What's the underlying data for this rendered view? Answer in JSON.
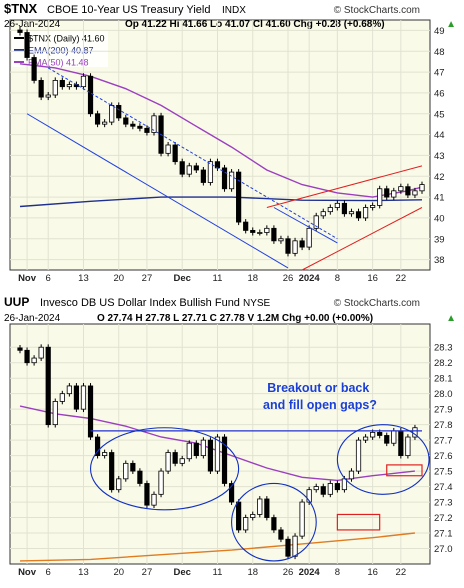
{
  "charts": [
    {
      "ticker": "$TNX",
      "name": "CBOE 10-Year US Treasury Yield",
      "exchange": "INDX",
      "date": "26-Jan-2024",
      "watermark": "© StockCharts.com",
      "quote": "Op 41.22  Hi 41.66  Lo 41.07  Cl 41.60  Chg +0.28 (+0.68%)",
      "chg_arrow": "▲",
      "legend": [
        {
          "label": "$TNX (Daily) 41.60",
          "color": "#000000"
        },
        {
          "label": "EMA(200) 40.87",
          "color": "#1f2f8f"
        },
        {
          "label": "EMA(50) 41.48",
          "color": "#9b3fbf"
        }
      ]
    },
    {
      "ticker": "UUP",
      "name": "Invesco DB US Dollar Index Bullish Fund",
      "exchange": "NYSE",
      "date": "26-Jan-2024",
      "watermark": "© StockCharts.com",
      "quote": "O 27.74  H 27.78  L 27.71  C 27.78  V 1.2M  Chg +0.00 (+0.00%)",
      "chg_arrow": "▲",
      "annotation": "Breakout or back\nand fill open gaps?"
    }
  ],
  "chart_data": [
    {
      "type": "candlestick",
      "title": "$TNX CBOE 10-Year US Treasury Yield INDX",
      "ylim": [
        37.5,
        49.5
      ],
      "yticks": [
        38,
        39,
        40,
        41,
        42,
        43,
        44,
        45,
        46,
        47,
        48,
        49
      ],
      "x_labels": [
        {
          "i": 1,
          "label": "Nov"
        },
        {
          "i": 4,
          "label": "6"
        },
        {
          "i": 9,
          "label": "13"
        },
        {
          "i": 14,
          "label": "20"
        },
        {
          "i": 18,
          "label": "27"
        },
        {
          "i": 23,
          "label": "Dec"
        },
        {
          "i": 28,
          "label": "11"
        },
        {
          "i": 33,
          "label": "18"
        },
        {
          "i": 38,
          "label": "26"
        },
        {
          "i": 41,
          "label": "2024"
        },
        {
          "i": 45,
          "label": "8"
        },
        {
          "i": 50,
          "label": "16"
        },
        {
          "i": 54,
          "label": "22"
        }
      ],
      "closes": [
        48.9,
        47.7,
        46.6,
        45.8,
        45.9,
        46.6,
        46.3,
        46.4,
        46.3,
        46.8,
        45.0,
        44.5,
        44.6,
        45.4,
        44.8,
        44.5,
        44.4,
        44.3,
        44.1,
        44.9,
        43.1,
        43.5,
        42.7,
        42.1,
        42.5,
        42.3,
        41.7,
        42.7,
        42.4,
        41.4,
        42.2,
        39.8,
        39.4,
        39.3,
        39.3,
        39.5,
        38.9,
        39.0,
        38.3,
        38.9,
        38.6,
        39.5,
        40.1,
        40.3,
        40.5,
        40.7,
        40.2,
        40.3,
        40.0,
        40.5,
        40.6,
        41.4,
        41.0,
        41.3,
        41.5,
        41.1,
        41.3,
        41.6
      ],
      "series": [
        {
          "name": "$TNX (Daily)",
          "last": 41.6
        },
        {
          "name": "EMA(200)",
          "last": 40.87,
          "values": [
            [
              0,
              40.55
            ],
            [
              10,
              40.8
            ],
            [
              20,
              41.0
            ],
            [
              30,
              41.0
            ],
            [
              40,
              40.85
            ],
            [
              50,
              40.83
            ],
            [
              57,
              40.87
            ]
          ]
        },
        {
          "name": "EMA(50)",
          "last": 41.48,
          "values": [
            [
              0,
              47.4
            ],
            [
              5,
              47.2
            ],
            [
              10,
              46.8
            ],
            [
              15,
              46.2
            ],
            [
              20,
              45.4
            ],
            [
              25,
              44.4
            ],
            [
              30,
              43.4
            ],
            [
              35,
              42.3
            ],
            [
              40,
              41.6
            ],
            [
              45,
              41.2
            ],
            [
              50,
              41.0
            ],
            [
              55,
              41.3
            ],
            [
              57,
              41.48
            ]
          ]
        }
      ],
      "trendlines": [
        {
          "style": "dashed",
          "from": [
            4,
            47.2
          ],
          "to": [
            45,
            39.0
          ]
        },
        {
          "style": "solid",
          "from": [
            1,
            45.0
          ],
          "to": [
            38,
            37.6
          ]
        },
        {
          "style": "solid",
          "from": [
            36,
            40.5
          ],
          "to": [
            45,
            38.8
          ]
        },
        {
          "style": "red",
          "from": [
            35,
            40.5
          ],
          "to": [
            57,
            42.5
          ]
        },
        {
          "style": "red",
          "from": [
            40,
            37.5
          ],
          "to": [
            57,
            40.5
          ]
        }
      ]
    },
    {
      "type": "candlestick",
      "title": "UUP Invesco DB US Dollar Index Bullish Fund NYSE",
      "ylim": [
        26.9,
        28.45
      ],
      "yticks": [
        27.0,
        27.1,
        27.2,
        27.3,
        27.4,
        27.5,
        27.6,
        27.7,
        27.8,
        27.9,
        28.0,
        28.1,
        28.2,
        28.3
      ],
      "x_labels": [
        {
          "i": 1,
          "label": "Nov"
        },
        {
          "i": 4,
          "label": "6"
        },
        {
          "i": 9,
          "label": "13"
        },
        {
          "i": 14,
          "label": "20"
        },
        {
          "i": 18,
          "label": "27"
        },
        {
          "i": 23,
          "label": "Dec"
        },
        {
          "i": 28,
          "label": "11"
        },
        {
          "i": 33,
          "label": "18"
        },
        {
          "i": 38,
          "label": "26"
        },
        {
          "i": 41,
          "label": "2024"
        },
        {
          "i": 45,
          "label": "8"
        },
        {
          "i": 50,
          "label": "16"
        },
        {
          "i": 54,
          "label": "22"
        }
      ],
      "closes": [
        28.28,
        28.2,
        28.23,
        28.3,
        27.8,
        27.95,
        28.0,
        28.05,
        27.9,
        28.05,
        27.72,
        27.6,
        27.62,
        27.38,
        27.45,
        27.55,
        27.5,
        27.42,
        27.28,
        27.35,
        27.5,
        27.62,
        27.55,
        27.58,
        27.68,
        27.6,
        27.7,
        27.5,
        27.72,
        27.42,
        27.3,
        27.12,
        27.2,
        27.22,
        27.32,
        27.2,
        27.12,
        27.06,
        26.95,
        27.08,
        27.3,
        27.38,
        27.4,
        27.35,
        27.42,
        27.38,
        27.45,
        27.5,
        27.7,
        27.72,
        27.75,
        27.73,
        27.68,
        27.76,
        27.6,
        27.72,
        27.78
      ],
      "series": [
        {
          "name": "UUP",
          "last": 27.78
        },
        {
          "name": "EMA(50)",
          "values": [
            [
              0,
              27.92
            ],
            [
              5,
              27.87
            ],
            [
              10,
              27.84
            ],
            [
              15,
              27.79
            ],
            [
              20,
              27.72
            ],
            [
              25,
              27.68
            ],
            [
              30,
              27.6
            ],
            [
              35,
              27.52
            ],
            [
              40,
              27.46
            ],
            [
              45,
              27.44
            ],
            [
              50,
              27.47
            ],
            [
              56,
              27.5
            ]
          ]
        },
        {
          "name": "EMA(200)",
          "values": [
            [
              0,
              26.92
            ],
            [
              10,
              26.93
            ],
            [
              20,
              26.96
            ],
            [
              30,
              26.99
            ],
            [
              40,
              27.03
            ],
            [
              50,
              27.07
            ],
            [
              56,
              27.1
            ]
          ]
        }
      ],
      "resistance": [
        [
          10,
          27.76
        ],
        [
          57,
          27.76
        ]
      ],
      "gaps": [
        {
          "from": [
            45,
            27.22
          ],
          "to": [
            51,
            27.12
          ]
        },
        {
          "from": [
            52,
            27.54
          ],
          "to": [
            57,
            27.47
          ]
        }
      ]
    }
  ]
}
